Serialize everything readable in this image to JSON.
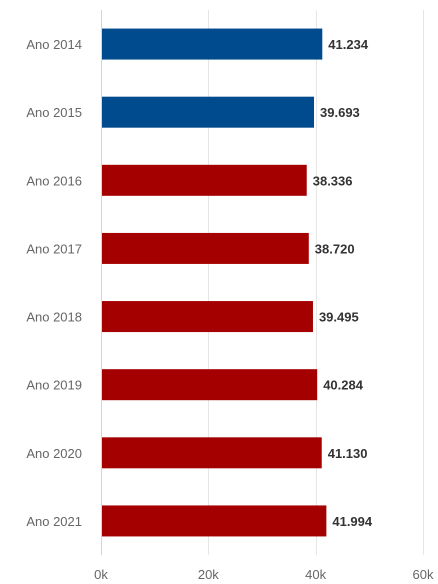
{
  "chart_data": {
    "type": "bar",
    "orientation": "horizontal",
    "title": "",
    "xlabel": "",
    "ylabel": "",
    "categories": [
      "Ano 2014",
      "Ano 2015",
      "Ano 2016",
      "Ano 2017",
      "Ano 2018",
      "Ano 2019",
      "Ano 2020",
      "Ano 2021"
    ],
    "values": [
      41234,
      39693,
      38336,
      38720,
      39495,
      40284,
      41130,
      41994
    ],
    "value_labels": [
      "41.234",
      "39.693",
      "38.336",
      "38.720",
      "39.495",
      "40.284",
      "41.130",
      "41.994"
    ],
    "bar_colors": [
      "#004b8d",
      "#004b8d",
      "#a50000",
      "#a50000",
      "#a50000",
      "#a50000",
      "#a50000",
      "#a50000"
    ],
    "xlim": [
      0,
      60000
    ],
    "x_ticks": [
      0,
      20000,
      40000,
      60000
    ],
    "x_tick_labels": [
      "0k",
      "20k",
      "40k",
      "60k"
    ],
    "grid": true,
    "legend": false
  },
  "colors": {
    "grid": "#e6e6e6",
    "axis": "#ccd6eb"
  }
}
